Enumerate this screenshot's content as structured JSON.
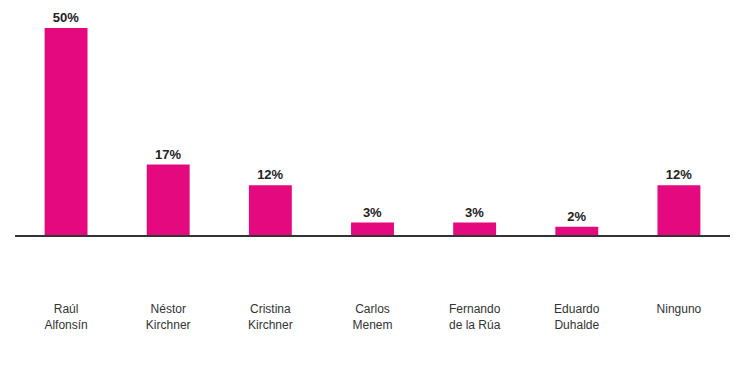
{
  "chart_data": {
    "type": "bar",
    "categories": [
      "Raúl Alfonsín",
      "Néstor Kirchner",
      "Cristina Kirchner",
      "Carlos Menem",
      "Fernando de la Rúa",
      "Eduardo Duhalde",
      "Ninguno"
    ],
    "values": [
      50,
      17,
      12,
      3,
      3,
      2,
      12
    ],
    "value_labels": [
      "50%",
      "17%",
      "12%",
      "3%",
      "3%",
      "2%",
      "12%"
    ],
    "color": "#e5097f",
    "ylim": [
      0,
      50
    ],
    "data_labels": true,
    "grid": false,
    "tick_labels": "x"
  }
}
